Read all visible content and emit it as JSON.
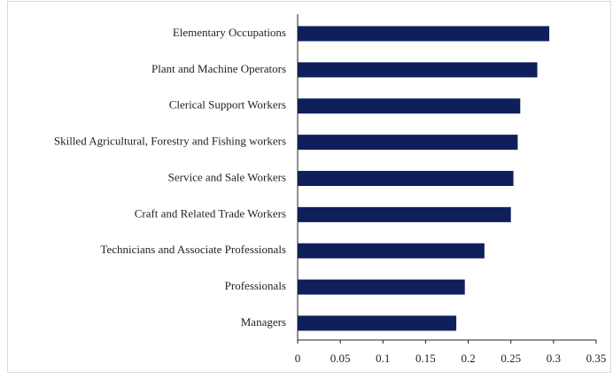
{
  "chart_data": {
    "type": "barh",
    "categories": [
      "Elementary Occupations",
      "Plant and Machine Operators",
      "Clerical Support Workers",
      "Skilled Agricultural, Forestry and Fishing workers",
      "Service and Sale Workers",
      "Craft and Related Trade Workers",
      "Technicians and Associate Professionals",
      "Professionals",
      "Managers"
    ],
    "values": [
      0.295,
      0.281,
      0.261,
      0.258,
      0.253,
      0.25,
      0.219,
      0.196,
      0.186
    ],
    "color": "#0e1f5b",
    "xlim": [
      0,
      0.35
    ],
    "xticks": [
      0,
      0.05,
      0.1,
      0.15,
      0.2,
      0.25,
      0.3,
      0.35
    ],
    "grid": false
  }
}
